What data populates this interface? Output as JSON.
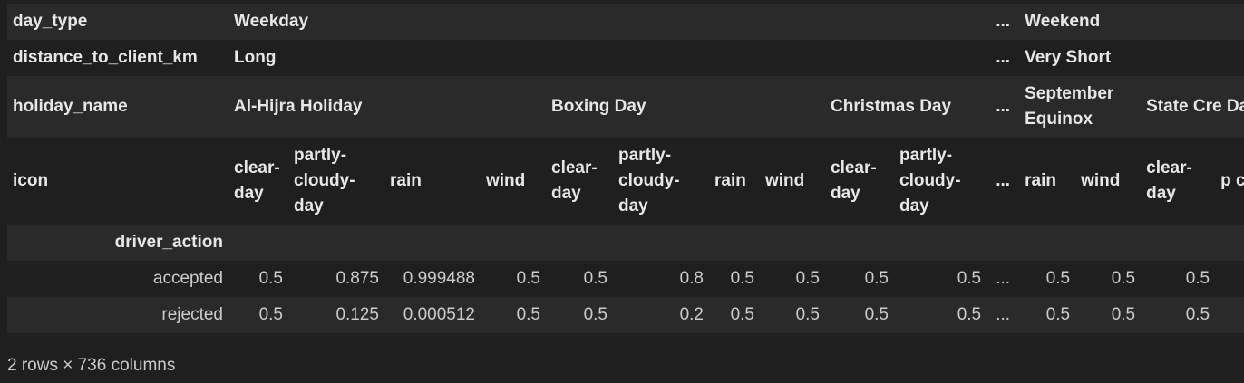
{
  "table": {
    "levels": [
      {
        "label": "day_type",
        "groups": {
          "weekday": "Weekday",
          "weekend": "Weekend"
        }
      },
      {
        "label": "distance_to_client_km",
        "groups": {
          "weekday": "Long",
          "weekend": "Very Short"
        }
      },
      {
        "label": "holiday_name",
        "groups": [
          "Al-Hijra Holiday",
          "Boxing Day",
          "Christmas Day",
          "September Equinox",
          "State Cre… Day"
        ]
      },
      {
        "label": "icon",
        "columns": [
          "clear-day",
          "partly-cloudy-day",
          "rain",
          "wind",
          "clear-day",
          "partly-cloudy-day",
          "rain",
          "wind",
          "clear-day",
          "partly-cloudy-day",
          "rain",
          "wind",
          "clear-day",
          "p…"
        ]
      }
    ],
    "holiday_names": {
      "g1": "Al-Hijra Holiday",
      "g2": "Boxing Day",
      "g3": "Christmas Day",
      "g4": "September Equinox",
      "g5": "State Cre Day"
    },
    "icons": {
      "c1": "clear-day",
      "c2": "partly-cloudy-day",
      "c3": "rain",
      "c4": "wind",
      "c5": "clear-day",
      "c6": "partly-cloudy-day",
      "c7": "rain",
      "c8": "wind",
      "c9": "clear-day",
      "c10": "partly-cloudy-day",
      "c11": "rain",
      "c12": "wind",
      "c13": "clear-day",
      "c14": "p c d"
    },
    "index_name": "driver_action",
    "ellipsis": "...",
    "rows": [
      {
        "label": "accepted",
        "values": [
          "0.5",
          "0.875",
          "0.999488",
          "0.5",
          "0.5",
          "0.8",
          "0.5",
          "0.5",
          "0.5",
          "0.5",
          "0.5",
          "0.5",
          "0.5"
        ]
      },
      {
        "label": "rejected",
        "values": [
          "0.5",
          "0.125",
          "0.000512",
          "0.5",
          "0.5",
          "0.2",
          "0.5",
          "0.5",
          "0.5",
          "0.5",
          "0.5",
          "0.5",
          "0.5"
        ]
      }
    ]
  },
  "footer": "2 rows × 736 columns"
}
